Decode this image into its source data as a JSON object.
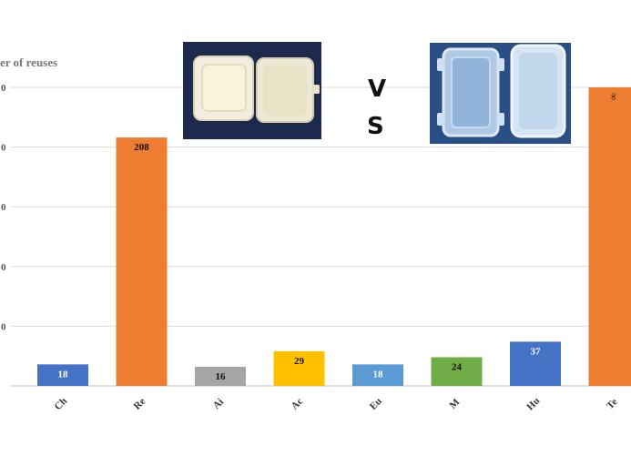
{
  "chart_data": {
    "type": "bar",
    "ylabel": "er of reuses",
    "categories": [
      "Ch",
      "Re",
      "Ai",
      "Ac",
      "Eu",
      "M",
      "Hu",
      "Te"
    ],
    "values": [
      18,
      208,
      16,
      29,
      18,
      24,
      37,
      250
    ],
    "data_labels": [
      "18",
      "208",
      "16",
      "29",
      "18",
      "24",
      "37",
      "∞"
    ],
    "colors": [
      "#4472c4",
      "#ed7d31",
      "#a5a5a5",
      "#ffc000",
      "#5b9bd5",
      "#70ad47",
      "#4472c4",
      "#ed7d31"
    ],
    "label_colors": [
      "#ffffff",
      "#111111",
      "#111111",
      "#111111",
      "#ffffff",
      "#111111",
      "#ffffff",
      "#111111"
    ],
    "ylim": [
      0,
      250
    ],
    "y_ticks": [
      "0",
      "0",
      "0",
      "0",
      "0"
    ],
    "grid": true,
    "legend": "none"
  },
  "annotations": {
    "vs_v": "V",
    "vs_s": "S"
  },
  "images": {
    "foam_container": "styrofoam-clamshell-container",
    "plastic_container": "reusable-plastic-food-container"
  }
}
